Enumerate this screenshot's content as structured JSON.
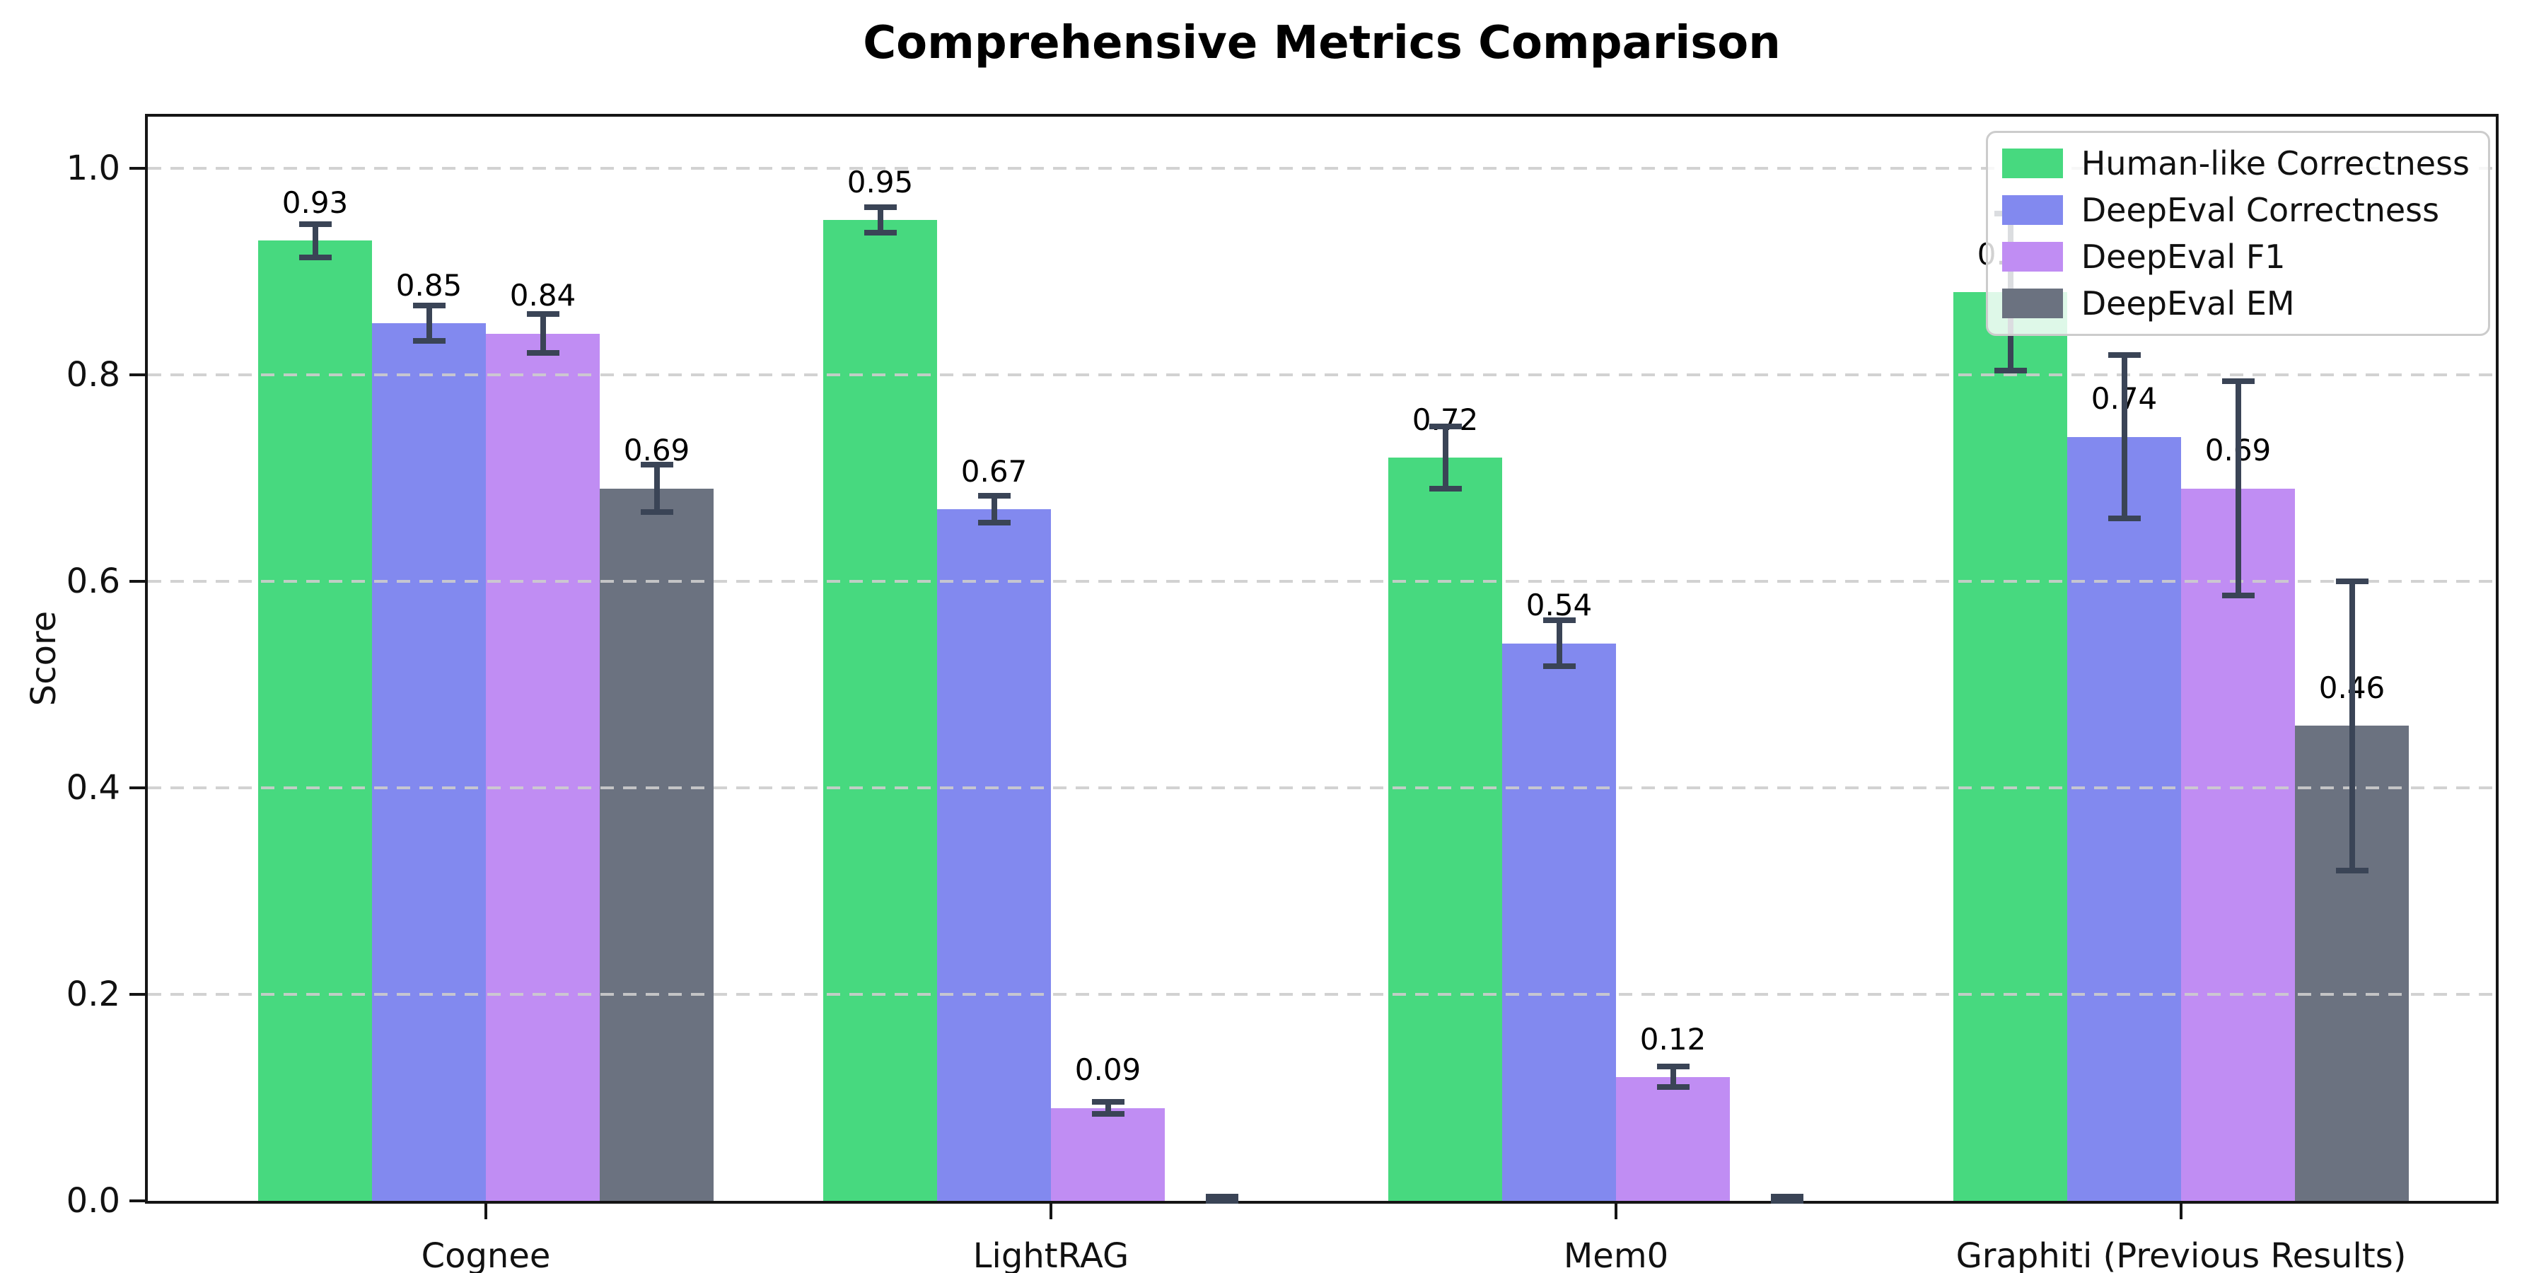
{
  "title": "Comprehensive Metrics Comparison",
  "chart_data": {
    "type": "bar",
    "title": "Comprehensive Metrics Comparison",
    "xlabel": "",
    "ylabel": "Score",
    "categories": [
      "Cognee",
      "LightRAG",
      "Mem0",
      "Graphiti (Previous Results)"
    ],
    "series": [
      {
        "name": "Human-like Correctness",
        "color": "#47d97f",
        "values": [
          0.93,
          0.95,
          0.72,
          0.88
        ],
        "errors": [
          0.016,
          0.012,
          0.03,
          0.076
        ]
      },
      {
        "name": "DeepEval Correctness",
        "color": "#8289ef",
        "values": [
          0.85,
          0.67,
          0.54,
          0.74
        ],
        "errors": [
          0.017,
          0.013,
          0.022,
          0.079
        ]
      },
      {
        "name": "DeepEval F1",
        "color": "#c08df3",
        "values": [
          0.84,
          0.09,
          0.12,
          0.69
        ],
        "errors": [
          0.019,
          0.006,
          0.01,
          0.104
        ]
      },
      {
        "name": "DeepEval EM",
        "color": "#6b7280",
        "values": [
          0.69,
          0.0,
          0.0,
          0.46
        ],
        "errors": [
          0.023,
          0.004,
          0.004,
          0.14
        ]
      }
    ],
    "bar_labels": [
      [
        "0.93",
        "0.95",
        "0.72",
        "0.88"
      ],
      [
        "0.85",
        "0.67",
        "0.54",
        "0.74"
      ],
      [
        "0.84",
        "0.09",
        "0.12",
        "0.69"
      ],
      [
        "0.69",
        "",
        "",
        "0.46"
      ]
    ],
    "ytick_values": [
      0.0,
      0.2,
      0.4,
      0.6,
      0.8,
      1.0
    ],
    "ytick_labels": [
      "0.0",
      "0.2",
      "0.4",
      "0.6",
      "0.8",
      "1.0"
    ],
    "ylim": [
      0,
      1.05
    ],
    "grid": {
      "axis": "y",
      "style": "dashed",
      "over_bars": true,
      "color": "#cdcdcd"
    },
    "legend_position": "upper right",
    "error_bar_color": "#3a4456"
  }
}
